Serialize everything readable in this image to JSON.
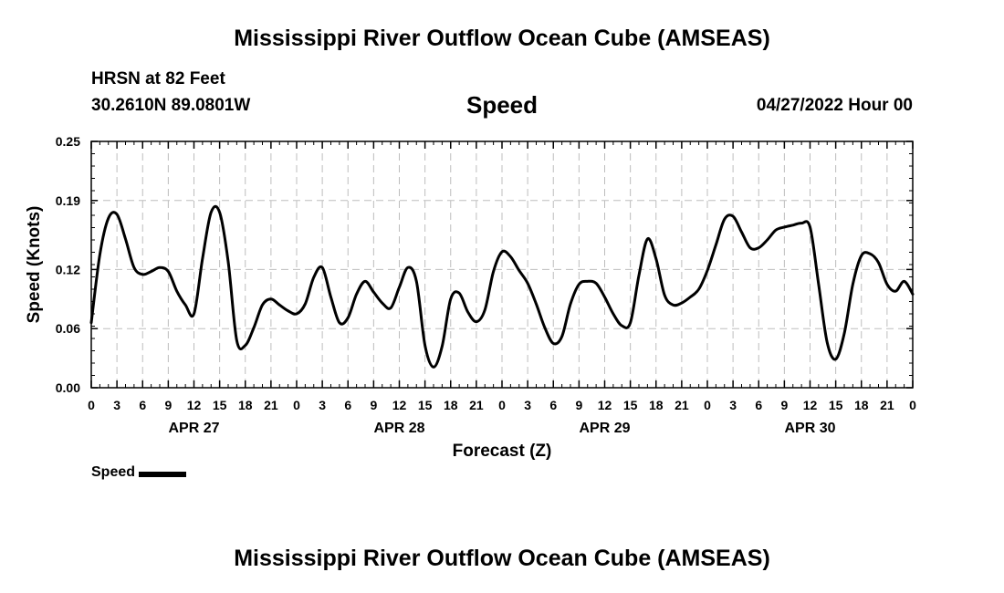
{
  "header": {
    "title": "Mississippi River Outflow Ocean Cube (AMSEAS)",
    "station": "HRSN at 82 Feet",
    "coords": "30.2610N  89.0801W",
    "variable": "Speed",
    "datetime": "04/27/2022 Hour 00"
  },
  "footer": {
    "title": "Mississippi River Outflow Ocean Cube (AMSEAS)"
  },
  "legend": {
    "label": "Speed"
  },
  "chart_data": {
    "type": "line",
    "xlabel": "Forecast (Z)",
    "ylabel": "Speed (Knots)",
    "ylim": [
      0,
      0.25
    ],
    "yticks": [
      "0.00",
      "0.06",
      "0.12",
      "0.19",
      "0.25"
    ],
    "xlim": [
      0,
      96
    ],
    "xtick_labels": [
      "0",
      "3",
      "6",
      "9",
      "12",
      "15",
      "18",
      "21",
      "0",
      "3",
      "6",
      "9",
      "12",
      "15",
      "18",
      "21",
      "0",
      "3",
      "6",
      "9",
      "12",
      "15",
      "18",
      "21",
      "0",
      "3",
      "6",
      "9",
      "12",
      "15",
      "18",
      "21",
      "0"
    ],
    "day_labels": [
      {
        "hour": 12,
        "label": "APR 27"
      },
      {
        "hour": 36,
        "label": "APR 28"
      },
      {
        "hour": 60,
        "label": "APR 29"
      },
      {
        "hour": 84,
        "label": "APR 30"
      }
    ],
    "grid": true,
    "legend_position": "bottom-left",
    "series": [
      {
        "name": "Speed",
        "color": "#000000",
        "x": [
          0,
          1,
          2,
          3,
          4,
          5,
          6,
          7,
          8,
          9,
          10,
          11,
          12,
          13,
          14,
          15,
          16,
          17,
          18,
          19,
          20,
          21,
          22,
          23,
          24,
          25,
          26,
          27,
          28,
          29,
          30,
          31,
          32,
          33,
          34,
          35,
          36,
          37,
          38,
          39,
          40,
          41,
          42,
          43,
          44,
          45,
          46,
          47,
          48,
          49,
          50,
          51,
          52,
          53,
          54,
          55,
          56,
          57,
          58,
          59,
          60,
          61,
          62,
          63,
          64,
          65,
          66,
          67,
          68,
          69,
          70,
          71,
          72,
          73,
          74,
          75,
          76,
          77,
          78,
          79,
          80,
          81,
          82,
          83,
          84,
          85,
          86,
          87,
          88,
          89,
          90,
          91,
          92,
          93,
          94,
          95,
          96
        ],
        "y": [
          0.066,
          0.135,
          0.172,
          0.176,
          0.151,
          0.122,
          0.115,
          0.118,
          0.122,
          0.118,
          0.098,
          0.084,
          0.075,
          0.131,
          0.178,
          0.178,
          0.128,
          0.048,
          0.043,
          0.061,
          0.084,
          0.09,
          0.084,
          0.078,
          0.075,
          0.085,
          0.112,
          0.122,
          0.092,
          0.066,
          0.071,
          0.095,
          0.108,
          0.097,
          0.086,
          0.081,
          0.102,
          0.122,
          0.108,
          0.043,
          0.021,
          0.042,
          0.09,
          0.096,
          0.077,
          0.067,
          0.079,
          0.118,
          0.138,
          0.133,
          0.119,
          0.106,
          0.085,
          0.061,
          0.045,
          0.052,
          0.085,
          0.105,
          0.108,
          0.106,
          0.092,
          0.075,
          0.063,
          0.066,
          0.114,
          0.151,
          0.131,
          0.094,
          0.084,
          0.086,
          0.092,
          0.1,
          0.119,
          0.145,
          0.171,
          0.174,
          0.158,
          0.142,
          0.142,
          0.15,
          0.16,
          0.163,
          0.165,
          0.167,
          0.163,
          0.105,
          0.046,
          0.029,
          0.055,
          0.105,
          0.134,
          0.136,
          0.127,
          0.105,
          0.098,
          0.108,
          0.095
        ]
      }
    ]
  }
}
